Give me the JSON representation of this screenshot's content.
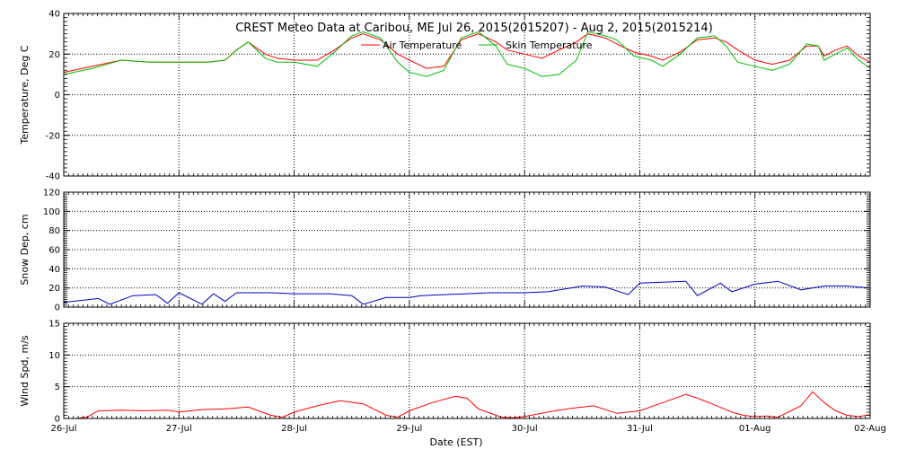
{
  "chart_data": [
    {
      "type": "line",
      "title": "CREST Meteo Data at Caribou, ME   Jul 26, 2015(2015207) - Aug  2, 2015(2015214)",
      "ylabel": "Temperature, Deg C",
      "ylim": [
        -40,
        40
      ],
      "yticks": [
        "40",
        "20",
        "0",
        "-20",
        "-40"
      ],
      "xlim": [
        0,
        7
      ],
      "grid": true,
      "legend_position": "top-right",
      "series": [
        {
          "name": "Air Temperature",
          "color": "#ff0000",
          "x": [
            0,
            0.25,
            0.5,
            0.75,
            1,
            1.25,
            1.4,
            1.5,
            1.6,
            1.75,
            1.85,
            2,
            2.2,
            2.35,
            2.5,
            2.6,
            2.75,
            2.9,
            3,
            3.15,
            3.3,
            3.45,
            3.6,
            3.75,
            3.85,
            4,
            4.15,
            4.3,
            4.45,
            4.55,
            4.7,
            4.8,
            4.95,
            5.1,
            5.2,
            5.35,
            5.5,
            5.65,
            5.75,
            5.85,
            6,
            6.15,
            6.3,
            6.45,
            6.55,
            6.6,
            6.7,
            6.8,
            6.9,
            7
          ],
          "y": [
            11,
            14,
            17,
            16,
            16,
            16,
            17,
            22,
            26,
            20,
            18,
            17,
            17,
            22,
            28,
            30,
            27,
            20,
            17,
            13,
            14,
            27,
            30,
            26,
            22,
            20,
            18,
            22,
            26,
            30,
            28,
            25,
            21,
            19,
            17,
            21,
            27,
            28,
            26,
            22,
            17,
            15,
            17,
            24,
            24,
            19,
            22,
            24,
            19,
            16
          ]
        },
        {
          "name": "Skin Temperature",
          "color": "#00c000",
          "x": [
            0,
            0.25,
            0.5,
            0.75,
            1,
            1.25,
            1.4,
            1.5,
            1.6,
            1.75,
            1.85,
            2,
            2.2,
            2.35,
            2.5,
            2.6,
            2.75,
            2.9,
            3,
            3.15,
            3.3,
            3.45,
            3.6,
            3.75,
            3.85,
            4,
            4.15,
            4.3,
            4.45,
            4.55,
            4.7,
            4.8,
            4.95,
            5.1,
            5.2,
            5.35,
            5.5,
            5.65,
            5.75,
            5.85,
            6,
            6.15,
            6.3,
            6.45,
            6.55,
            6.6,
            6.7,
            6.8,
            6.9,
            7
          ],
          "y": [
            10,
            13,
            17,
            16,
            16,
            16,
            17,
            22,
            26,
            18,
            16,
            16,
            14,
            21,
            29,
            31,
            28,
            16,
            11,
            9,
            12,
            28,
            31,
            24,
            15,
            13,
            9,
            10,
            17,
            31,
            29,
            27,
            19,
            17,
            14,
            20,
            28,
            29,
            24,
            16,
            14,
            12,
            15,
            25,
            24,
            17,
            20,
            23,
            17,
            13
          ]
        }
      ]
    },
    {
      "type": "line",
      "ylabel": "Snow Dep, cm",
      "ylim": [
        0,
        120
      ],
      "yticks": [
        "120",
        "100",
        "80",
        "60",
        "40",
        "20",
        "0"
      ],
      "xlim": [
        0,
        7
      ],
      "grid": true,
      "series": [
        {
          "color": "#0000c0",
          "x": [
            0,
            0.3,
            0.4,
            0.6,
            0.8,
            0.9,
            1,
            1.2,
            1.3,
            1.4,
            1.5,
            1.8,
            2,
            2.3,
            2.5,
            2.6,
            2.8,
            3,
            3.1,
            3.3,
            3.5,
            3.7,
            3.9,
            4,
            4.2,
            4.4,
            4.5,
            4.7,
            4.9,
            5,
            5.2,
            5.4,
            5.5,
            5.7,
            5.8,
            6,
            6.2,
            6.4,
            6.6,
            6.8,
            7
          ],
          "y": [
            5,
            9,
            3,
            12,
            13,
            4,
            15,
            3,
            14,
            6,
            15,
            15,
            14,
            14,
            12,
            3,
            10,
            10,
            12,
            13,
            14,
            15,
            15,
            15,
            16,
            20,
            22,
            21,
            13,
            25,
            26,
            27,
            12,
            25,
            16,
            24,
            27,
            18,
            22,
            22,
            20
          ]
        }
      ]
    },
    {
      "type": "line",
      "xlabel": "Date (EST)",
      "ylabel": "Wind Spd, m/s",
      "ylim": [
        0,
        15
      ],
      "yticks": [
        "15",
        "10",
        "5",
        "0"
      ],
      "xlim": [
        0,
        7
      ],
      "xticks": [
        "26-Jul",
        "27-Jul",
        "28-Jul",
        "29-Jul",
        "30-Jul",
        "31-Jul",
        "01-Aug",
        "02-Aug"
      ],
      "grid": true,
      "series": [
        {
          "color": "#ff0000",
          "x": [
            0,
            0.1,
            0.2,
            0.3,
            0.5,
            0.7,
            0.9,
            1,
            1.2,
            1.4,
            1.6,
            1.8,
            1.9,
            2,
            2.2,
            2.4,
            2.6,
            2.8,
            2.9,
            3,
            3.2,
            3.4,
            3.5,
            3.6,
            3.8,
            3.9,
            4,
            4.2,
            4.4,
            4.6,
            4.8,
            5,
            5.2,
            5.4,
            5.5,
            5.6,
            5.8,
            5.9,
            6,
            6.1,
            6.2,
            6.4,
            6.5,
            6.6,
            6.7,
            6.8,
            6.9,
            7
          ],
          "y": [
            0,
            0,
            0.2,
            1.2,
            1.3,
            1.2,
            1.3,
            1,
            1.4,
            1.5,
            1.8,
            0.5,
            0.2,
            1,
            2,
            2.8,
            2.3,
            0.5,
            0.2,
            1.2,
            2.5,
            3.5,
            3.2,
            1.5,
            0.2,
            0.1,
            0.3,
            1,
            1.6,
            2,
            0.8,
            1.2,
            2.5,
            3.8,
            3.2,
            2.5,
            1,
            0.5,
            0.3,
            0.4,
            0.2,
            2,
            4.2,
            2.5,
            1.2,
            0.5,
            0.3,
            0.6
          ]
        }
      ]
    }
  ]
}
